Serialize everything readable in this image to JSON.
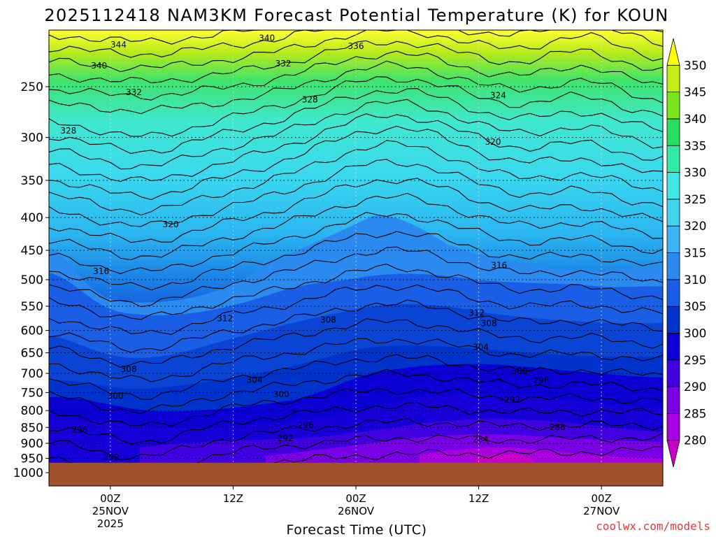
{
  "chart_data": {
    "type": "heatmap",
    "title": "2025112418 NAM3KM Forecast Potential Temperature (K) for KOUN",
    "xlabel": "Forecast Time (UTC)",
    "credit": "coolwx.com/models",
    "y_axis": {
      "scale": "pressure",
      "range": [
        200,
        1025
      ],
      "ticks": [
        250,
        300,
        350,
        400,
        450,
        500,
        550,
        600,
        650,
        700,
        750,
        800,
        850,
        900,
        950,
        1000
      ],
      "tick_labels": [
        "250",
        "300",
        "350",
        "400",
        "450",
        "500",
        "550",
        "600",
        "650",
        "700",
        "750",
        "800",
        "850",
        "900",
        "950",
        "1000"
      ],
      "grid": "dotted"
    },
    "x_axis": {
      "start_forecast_hour": 0,
      "end_forecast_hour": 60,
      "ticks": [
        {
          "forecast_hour": 6,
          "lines": [
            "00Z",
            "25NOV",
            "2025"
          ]
        },
        {
          "forecast_hour": 18,
          "lines": [
            "12Z"
          ]
        },
        {
          "forecast_hour": 30,
          "lines": [
            "00Z",
            "26NOV"
          ]
        },
        {
          "forecast_hour": 42,
          "lines": [
            "12Z"
          ]
        },
        {
          "forecast_hour": 54,
          "lines": [
            "00Z",
            "27NOV"
          ]
        }
      ],
      "grid": "dotted"
    },
    "colorbar": {
      "levels": [
        280,
        285,
        290,
        295,
        300,
        305,
        310,
        315,
        320,
        325,
        330,
        335,
        340,
        345,
        350
      ],
      "tick_labels": [
        "280",
        "285",
        "290",
        "295",
        "300",
        "305",
        "310",
        "315",
        "320",
        "325",
        "330",
        "335",
        "340",
        "345",
        "350"
      ],
      "colors": [
        "#cc00cc",
        "#aa00e0",
        "#7a00e6",
        "#4000e0",
        "#0a00d4",
        "#0033cc",
        "#1a5ee6",
        "#2a8af0",
        "#3ab4f4",
        "#3fd4f2",
        "#3fe8e6",
        "#32eaa6",
        "#28e060",
        "#7ae61a",
        "#c6ee14",
        "#ffff00"
      ],
      "position": "right"
    },
    "ground": {
      "pressure": 965,
      "color": "#a0522d"
    },
    "contour_interval": 4,
    "contour_labels": [
      {
        "value": "344",
        "forecast_hour": 6.8,
        "pressure": 215
      },
      {
        "value": "340",
        "forecast_hour": 21.3,
        "pressure": 210
      },
      {
        "value": "340",
        "forecast_hour": 4.9,
        "pressure": 232
      },
      {
        "value": "336",
        "forecast_hour": 30.0,
        "pressure": 216
      },
      {
        "value": "332",
        "forecast_hour": 22.9,
        "pressure": 230
      },
      {
        "value": "332",
        "forecast_hour": 8.3,
        "pressure": 255
      },
      {
        "value": "328",
        "forecast_hour": 1.9,
        "pressure": 293
      },
      {
        "value": "328",
        "forecast_hour": 25.5,
        "pressure": 262
      },
      {
        "value": "324",
        "forecast_hour": 43.9,
        "pressure": 258
      },
      {
        "value": "320",
        "forecast_hour": 43.4,
        "pressure": 305
      },
      {
        "value": "320",
        "forecast_hour": 11.9,
        "pressure": 410
      },
      {
        "value": "316",
        "forecast_hour": 5.1,
        "pressure": 485
      },
      {
        "value": "316",
        "forecast_hour": 44.0,
        "pressure": 475
      },
      {
        "value": "312",
        "forecast_hour": 17.2,
        "pressure": 575
      },
      {
        "value": "312",
        "forecast_hour": 41.8,
        "pressure": 563
      },
      {
        "value": "308",
        "forecast_hour": 27.3,
        "pressure": 578
      },
      {
        "value": "308",
        "forecast_hour": 43.0,
        "pressure": 585
      },
      {
        "value": "304",
        "forecast_hour": 42.2,
        "pressure": 637
      },
      {
        "value": "308",
        "forecast_hour": 7.8,
        "pressure": 690
      },
      {
        "value": "304",
        "forecast_hour": 20.1,
        "pressure": 717
      },
      {
        "value": "300",
        "forecast_hour": 46.0,
        "pressure": 695
      },
      {
        "value": "296",
        "forecast_hour": 48.1,
        "pressure": 718
      },
      {
        "value": "300",
        "forecast_hour": 6.5,
        "pressure": 760
      },
      {
        "value": "300",
        "forecast_hour": 22.7,
        "pressure": 755
      },
      {
        "value": "292",
        "forecast_hour": 45.3,
        "pressure": 770
      },
      {
        "value": "296",
        "forecast_hour": 3.0,
        "pressure": 857
      },
      {
        "value": "296",
        "forecast_hour": 25.1,
        "pressure": 843
      },
      {
        "value": "288",
        "forecast_hour": 49.7,
        "pressure": 849
      },
      {
        "value": "292",
        "forecast_hour": 23.1,
        "pressure": 884
      },
      {
        "value": "284",
        "forecast_hour": 42.2,
        "pressure": 887
      },
      {
        "value": "292",
        "forecast_hour": 6.1,
        "pressure": 946
      }
    ]
  }
}
